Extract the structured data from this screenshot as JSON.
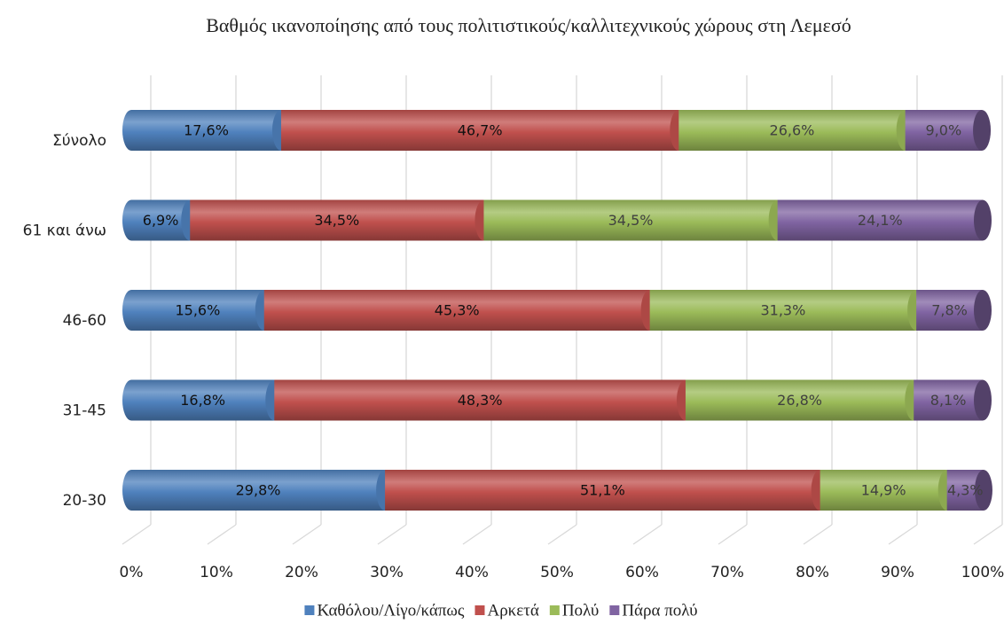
{
  "chart_data": {
    "type": "bar",
    "orientation": "horizontal",
    "stacked": true,
    "title": "Βαθμός ικανοποίησης από τους πολιτιστικούς/καλλιτεχνικούς χώρους στη Λεμεσό",
    "categories": [
      "20-30",
      "31-45",
      "46-60",
      "61 και άνω",
      "Σύνολο"
    ],
    "series": [
      {
        "name": "Καθόλου/Λίγο/κάπως",
        "color": "#4f81bd",
        "values": [
          29.8,
          16.8,
          15.6,
          6.9,
          17.6
        ],
        "value_labels": [
          "29,8%",
          "16,8%",
          "15,6%",
          "6,9%",
          "17,6%"
        ]
      },
      {
        "name": "Αρκετά",
        "color": "#c0504d",
        "values": [
          51.1,
          48.3,
          45.3,
          34.5,
          46.7
        ],
        "value_labels": [
          "51,1%",
          "48,3%",
          "45,3%",
          "34,5%",
          "46,7%"
        ]
      },
      {
        "name": "Πολύ",
        "color": "#9bbb59",
        "values": [
          14.9,
          26.8,
          31.3,
          34.5,
          26.6
        ],
        "value_labels": [
          "14,9%",
          "26,8%",
          "31,3%",
          "34,5%",
          "26,6%"
        ]
      },
      {
        "name": "Πάρα πολύ",
        "color": "#8064a2",
        "values": [
          4.3,
          8.1,
          7.8,
          24.1,
          9.0
        ],
        "value_labels": [
          "4,3%",
          "8,1%",
          "7,8%",
          "24,1%",
          "9,0%"
        ]
      }
    ],
    "xlim": [
      0,
      100
    ],
    "xticks": [
      {
        "value": 0,
        "label": "0%"
      },
      {
        "value": 10,
        "label": "10%"
      },
      {
        "value": 20,
        "label": "20%"
      },
      {
        "value": 30,
        "label": "30%"
      },
      {
        "value": 40,
        "label": "40%"
      },
      {
        "value": 50,
        "label": "50%"
      },
      {
        "value": 60,
        "label": "60%"
      },
      {
        "value": 70,
        "label": "70%"
      },
      {
        "value": 80,
        "label": "80%"
      },
      {
        "value": 90,
        "label": "90%"
      },
      {
        "value": 100,
        "label": "100%"
      }
    ],
    "grid": true,
    "legend": "bottom"
  }
}
